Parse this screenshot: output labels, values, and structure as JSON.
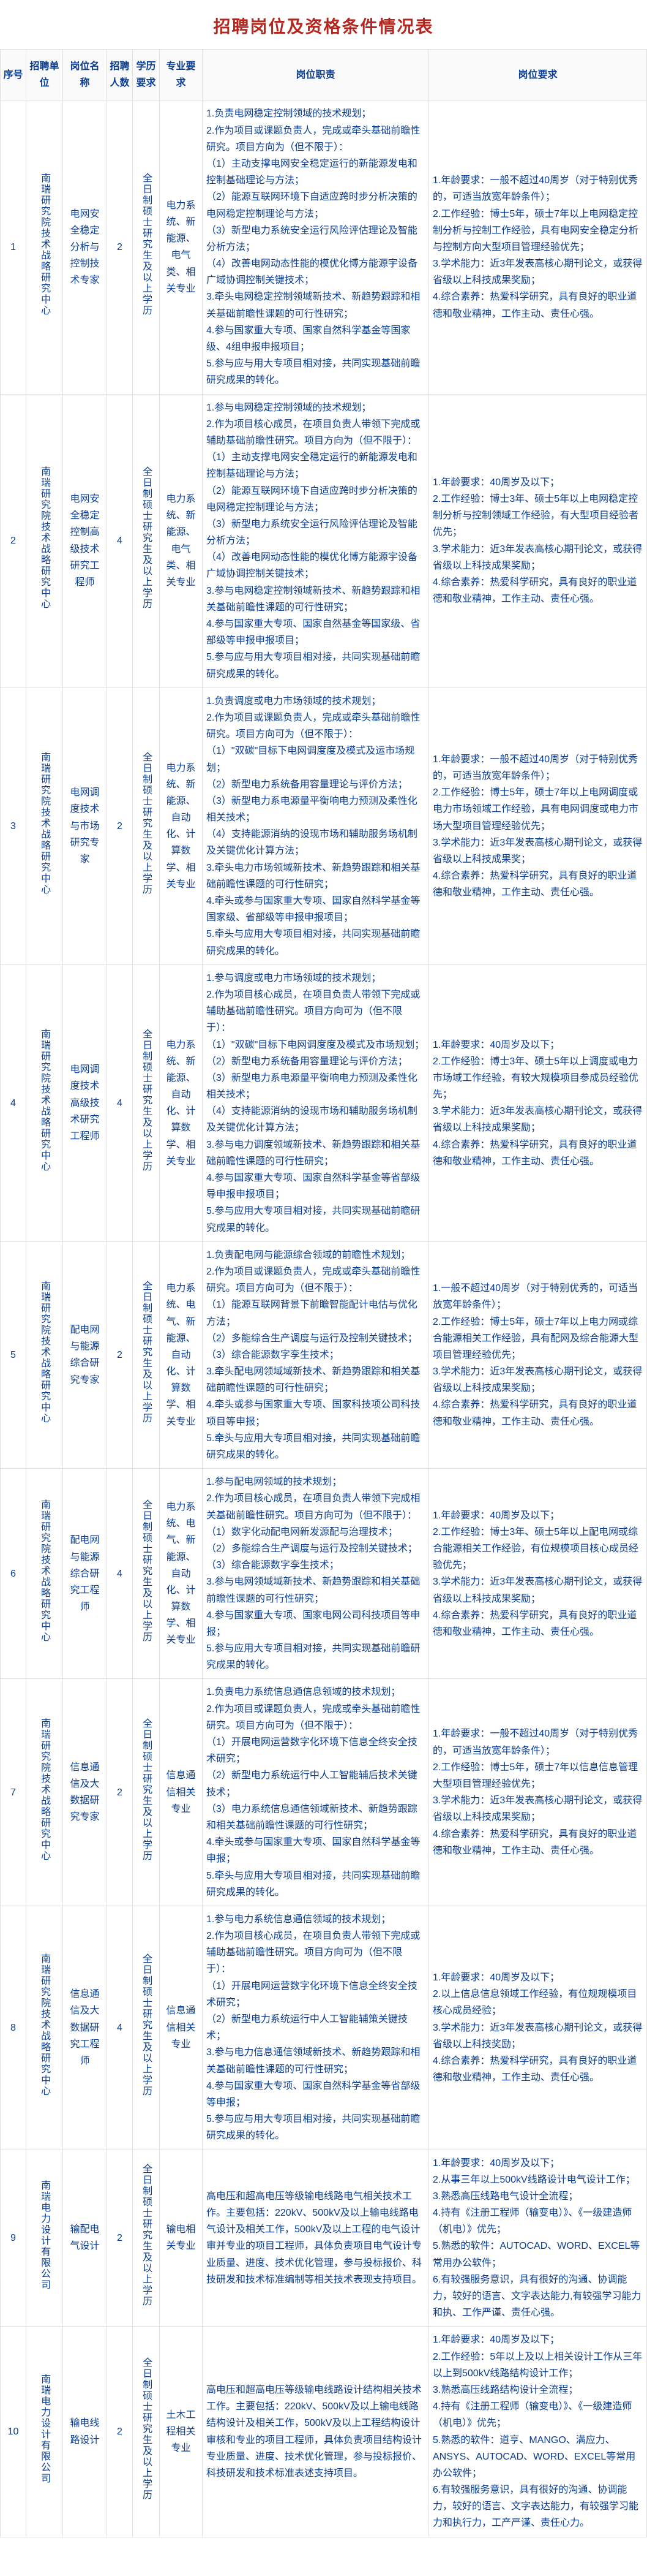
{
  "title": "招聘岗位及资格条件情况表",
  "headers": {
    "seq": "序号",
    "unit": "招聘单位",
    "job": "岗位名称",
    "num": "招聘人数",
    "edu": "学历要求",
    "major": "专业要求",
    "duty": "岗位职责",
    "req": "岗位要求"
  },
  "edu_text": "全日制硕士研究生及以上学历",
  "rows": [
    {
      "seq": "1",
      "unit": "南瑞研究院技术战略研究中心",
      "job": "电网安全稳定分析与控制技术专家",
      "num": "2",
      "major": "电力系统、新能源、电气类、相关专业",
      "duties": [
        "1.负责电网稳定控制领域的技术规划；",
        "2.作为项目或课题负责人，完成或牵头基础前瞻性研究。项目方向为（但不限于）：",
        "（1）主动支撑电网安全稳定运行的新能源发电和控制基础理论与方法；",
        "（2）能源互联网环境下自适应跨时步分析决策的电网稳定控制理论与方法；",
        "（3）新型电力系统安全运行风险评估理论及智能分析方法；",
        "（4）改善电网动态性能的模优化博方能源宇设备广域协调控制关键技术；",
        "3.牵头电网稳定控制领域新技术、新趋势跟踪和相关基础前瞻性课题的可行性研究；",
        "4.参与国家重大专项、国家自然科学基金等国家级、4组申报申报项目；",
        "5.参与应与用大专项目相对接，共同实现基础前瞻研究成果的转化。"
      ],
      "reqs": [
        "1.年龄要求：一般不超过40周岁（对于特别优秀的，可适当放宽年龄条件）；",
        "2.工作经验：博士5年，硕士7年以上电网稳定控制分析与控制工作经验，具有电网安全稳定分析与控制方向大型项目管理经验优先；",
        "3.学术能力：近3年发表高核心期刊论文，或获得省级以上科技成果奖励；",
        "4.综合素养：热爱科学研究，具有良好的职业道德和敬业精神，工作主动、责任心强。"
      ]
    },
    {
      "seq": "2",
      "unit": "南瑞研究院技术战略研究中心",
      "job": "电网安全稳定控制高级技术研究工程师",
      "num": "4",
      "major": "电力系统、新能源、电气类、相关专业",
      "duties": [
        "1.参与电网稳定控制领域的技术规划；",
        "2.作为项目核心成员，在项目负责人带领下完成或辅助基础前瞻性研究。项目方向为（但不限于）：",
        "（1）主动支撑电网安全稳定运行的新能源发电和控制基础理论与方法；",
        "（2）能源互联网环境下自适应跨时步分析决策的电网稳定控制理论与方法；",
        "（3）新型电力系统安全运行风险评估理论及智能分析方法；",
        "（4）改善电网动态性能的模优化博方能源宇设备广域协调控制关键技术；",
        "3.参与电网稳定控制领域新技术、新趋势跟踪和相关基础前瞻性课题的可行性研究；",
        "4.参与国家重大专项、国家自然基金等国家级、省部级等申报申报项目；",
        "5.参与应与用大专项目相对接，共同实现基础前瞻研究成果的转化。"
      ],
      "reqs": [
        "1.年龄要求：40周岁及以下；",
        "2.工作经验：博士3年、硕士5年以上电网稳定控制分析与控制领域工作经验，有大型项目经验者优先；",
        "3.学术能力：近3年发表高核心期刊论文，或获得省级以上科技成果奖励；",
        "4.综合素养：热爱科学研究，具有良好的职业道德和敬业精神，工作主动、责任心强。"
      ]
    },
    {
      "seq": "3",
      "unit": "南瑞研究院技术战略研究中心",
      "job": "电网调度技术与市场研究专家",
      "num": "2",
      "major": "电力系统、新能源、自动化、计算数学、相关专业",
      "duties": [
        "1.负责调度或电力市场领域的技术规划；",
        "2.作为项目或课题负责人，完成或牵头基础前瞻性研究。项目方向可为（但不限于）：",
        "（1）\"双碳\"目标下电网调度度及模式及运市场规划；",
        "（2）新型电力系统备用容量理论与评价方法；",
        "（3）新型电力系电源量平衡响电力预测及柔性化相关技术；",
        "（4）支持能源消纳的设现市场和辅助服务场机制及关键优化计算方法；",
        "3.牵头电力市场领域新技术、新趋势跟踪和相关基础前瞻性课题的可行性研究；",
        "4.牵头或参与国家重大专项、国家自然科学基金等国家级、省部级等申报申报项目；",
        "5.牵头与应用大专项目相对接，共同实现基础前瞻研究成果的转化。"
      ],
      "reqs": [
        "1.年龄要求：一般不超过40周岁（对于特别优秀的，可适当放宽年龄条件）；",
        "2.工作经验：博士5年，硕士7年以上电网调度或电力市场领域工作经验，具有电网调度或电力市场大型项目管理经验优先；",
        "3.学术能力：近3年发表高核心期刊论文，或获得省级以上科技成果奖；",
        "4.综合素养：热爱科学研究，具有良好的职业道德和敬业精神，工作主动、责任心强。"
      ]
    },
    {
      "seq": "4",
      "unit": "南瑞研究院技术战略研究中心",
      "job": "电网调度技术高级技术研究工程师",
      "num": "4",
      "major": "电力系统、新能源、自动化、计算数学、相关专业",
      "duties": [
        "1.参与调度或电力市场领域的技术规划；",
        "2.作为项目核心成员，在项目负责人带领下完成或辅助基础前瞻性研究。项目方向可为（但不限于）：",
        "（1）\"双碳\"目标下电网调度度及模式及市场规划；",
        "（2）新型电力系统备用容量理论与评价方法；",
        "（3）新型电力系电源量平衡响电力预测及柔性化相关技术；",
        "（4）支持能源消纳的设现市场和辅助服务场机制及关键优化计算方法；",
        "3.参与电力调度领域新技术、新趋势跟踪和相关基础前瞻性课题的可行性研究；",
        "4.参与国家重大专项、国家自然科学基金等省部级导申报申报项目；",
        "5.参与应用大专项目相对接，共同实现基础前瞻研究成果的转化。"
      ],
      "reqs": [
        "1.年龄要求：40周岁及以下；",
        "2.工作经验：博士3年、硕士5年以上调度或电力市场域工作经验，有较大规模项目参成员经验优先；",
        "3.学术能力：近3年发表高核心期刊论文，或获得省级以上科技成果奖励；",
        "4.综合素养：热爱科学研究，具有良好的职业道德和敬业精神，工作主动、责任心强。"
      ]
    },
    {
      "seq": "5",
      "unit": "南瑞研究院技术战略研究中心",
      "job": "配电网与能源综合研究专家",
      "num": "2",
      "major": "电力系统、电气、新能源、自动化、计算数学、相关专业",
      "duties": [
        "1.负责配电网与能源综合领域的前瞻性术规划；",
        "2.作为项目或课题负责人，完成或牵头基础前瞻性研究。项目方向可为（但不限于）：",
        "（1）能源互联网背景下前瞻智能配计电估与优化方法；",
        "（2）多能综合生产调度与运行及控制关键技术；",
        "（3）综合能源数字孪生技术；",
        "3.牵头配电网领域域新技术、新趋势跟踪和相关基础前瞻性课题的可行性研究；",
        "4.牵头或参与国家重大专项、国家科技项公司科技项目等申报；",
        "5.牵头与应用大专项目相对接，共同实现基础前瞻研究成果的转化。"
      ],
      "reqs": [
        "1.一般不超过40周岁（对于特别优秀的，可适当放宽年龄条件）；",
        "2.工作经验：博士5年，硕士7年以上电力网或综合能源相关工作经验，具有配网及综合能源大型项目管理经验优先；",
        "3.学术能力：近3年发表高核心期刊论文，或获得省级以上科技成果奖励；",
        "4.综合素养：热爱科学研究，具有良好的职业道德和敬业精神，工作主动、责任心强。"
      ]
    },
    {
      "seq": "6",
      "unit": "南瑞研究院技术战略研究中心",
      "job": "配电网与能源综合研究工程师",
      "num": "4",
      "major": "电力系统、电气、新能源、自动化、计算数学、相关专业",
      "duties": [
        "1.参与配电网领域的技术规划；",
        "2.作为项目核心成员，在项目负责人带领下完成相关基础前瞻性研究。项目方向可为（但不限于）：",
        "（1）数字化动配电网新发源配与治理技术；",
        "（2）多能综合生产调度与运行及控制关键技术；",
        "（3）综合能源数字孪生技术；",
        "3.参与电网领域域新技术、新趋势跟踪和相关基础前瞻性课题的可行性研究；",
        "4.参与国家重大专项、国家电网公司科技项目等申报；",
        "5.参与应用大专项目相对接，共同实现基础前瞻研究成果的转化。"
      ],
      "reqs": [
        "1.年龄要求：40周岁及以下；",
        "2.工作经验：博士3年、硕士5年以上配电网或综合能源相关工作经验，有位规模项目核心成员经验优先；",
        "3.学术能力：近3年发表高核心期刊论文，或获得省级以上科技成果奖励；",
        "4.综合素养：热爱科学研究，具有良好的职业道德和敬业精神，工作主动、责任心强。"
      ]
    },
    {
      "seq": "7",
      "unit": "南瑞研究院技术战略研究中心",
      "job": "信息通信及大数据研究专家",
      "num": "2",
      "major": "信息通信相关专业",
      "duties": [
        "1.负责电力系统信息通信息领域的技术规划；",
        "2.作为项目或课题负责人，完成或牵头基础前瞻性研究。项目方向可为（但不限于）：",
        "（1）开展电网运营数字化环境下信息全终安全技术研究；",
        "（2）新型电力系统运行中人工智能辅后技术关键技术；",
        "（3）电力系统信息通信领域新技术、新趋势跟踪和相关基础前瞻性课题的可行性研究；",
        "4.牵头或参与国家重大专项、国家自然科学基金等申报；",
        "5.牵头与应用大专项目相对接，共同实现基础前瞻研究成果的转化。"
      ],
      "reqs": [
        "1.年龄要求：一般不超过40周岁（对于特别优秀的，可适当放宽年龄条件）；",
        "2.工作经验：博士5年，硕士7年以信息信息管理大型项目管理经验优先；",
        "3.学术能力：近3年发表高核心期刊论文，或获得省级以上科技成果奖励；",
        "4.综合素养：热爱科学研究，具有良好的职业道德和敬业精神，工作主动、责任心强。"
      ]
    },
    {
      "seq": "8",
      "unit": "南瑞研究院技术战略研究中心",
      "job": "信息通信及大数据研究工程师",
      "num": "4",
      "major": "信息通信相关专业",
      "duties": [
        "1.参与电力系统信息通信领域的技术规划；",
        "2.作为项目核心成员，在项目负责人带领下完成或辅助基础前瞻性研究。项目方向可为（但不限于）：",
        "（1）开展电网运营数字化环境下信息全终安全技术研究；",
        "（2）新型电力系统运行中人工智能辅策关键技术；",
        "3.参与电力信息通信领域新技术、新趋势跟踪和相关基础前瞻性课题的可行性研究；",
        "4.参与国家重大专项、国家自然科学基金等省部级等申报；",
        "5.参与应与用大专项目相对接，共同实现基础前瞻研究成果的转化。"
      ],
      "reqs": [
        "1.年龄要求：40周岁及以下；",
        "2.以上信息信息领域工作经验，有位规规模项目核心成员经验；",
        "3.学术能力：近3年发表高核心期刊论文，或获得省级以上科技奖励；",
        "4.综合素养：热爱科学研究，具有良好的职业道德和敬业精神，工作主动、责任心强。"
      ]
    },
    {
      "seq": "9",
      "unit": "南瑞电力设计有限公司",
      "job": "输配电气设计",
      "num": "2",
      "major": "输电相关专业",
      "duties": [
        "高电压和超高电压等级输电线路电气相关技术工作。主要包括：220kV、500kV及以上输电线路电气设计及相关工作，500kV及以上工程的电气设计审并专业的项目工程师，具体负责项目电气设计专业质量、进度、技术优化管理，参与投标报价、科技研发和技术标准编制等相关技术表现支持项目。"
      ],
      "reqs": [
        "1.年龄要求：40周岁及以下；",
        "2.从事三年以上500kV线路设计电气设计工作；",
        "3.熟悉高压线路电气设计全流程；",
        "4.持有《注册工程师（输变电）》、《一级建造师（机电）》优先；",
        "5.熟悉的软件：AUTOCAD、WORD、EXCEL等常用办公软件；",
        "6.有较强服务意识，具有很好的沟通、协调能力，较好的语言、文字表达能力,有较强学习能力和执、工作严谨、责任心强。"
      ]
    },
    {
      "seq": "10",
      "unit": "南瑞电力设计有限公司",
      "job": "输电线路设计",
      "num": "2",
      "major": "土木工程相关专业",
      "duties": [
        "高电压和超高电压等级输电线路设计结构相关技术工作。主要包括：220kV、500kV及以上输电线路结构设计及相关工作，500kV及以上工程结构设计审核和专业的项目工程师，具体负责项目结构设计专业质量、进度、技术优化管理，参与投标报价、科技研发和技术标准表述支持项目。"
      ],
      "reqs": [
        "1.年龄要求：40周岁及以下；",
        "2.工作经验：5年以上及以上相关设计工作从三年以上到500kV线路结构设计工作；",
        "3.熟悉高压线路结构设计全流程；",
        "4.持有《注册工程师（输变电）》、《一级建造师（机电）》优先；",
        "5.熟悉的软件：道亨、MANGO、满应力、ANSYS、AUTOCAD、WORD、EXCEL等常用办公软件；",
        "6.有较强服务意识，具有很好的沟通、协调能力，较好的语言、文字表达能力，有较强学习能力和执行力，工产严谨、责任心力。"
      ]
    }
  ]
}
